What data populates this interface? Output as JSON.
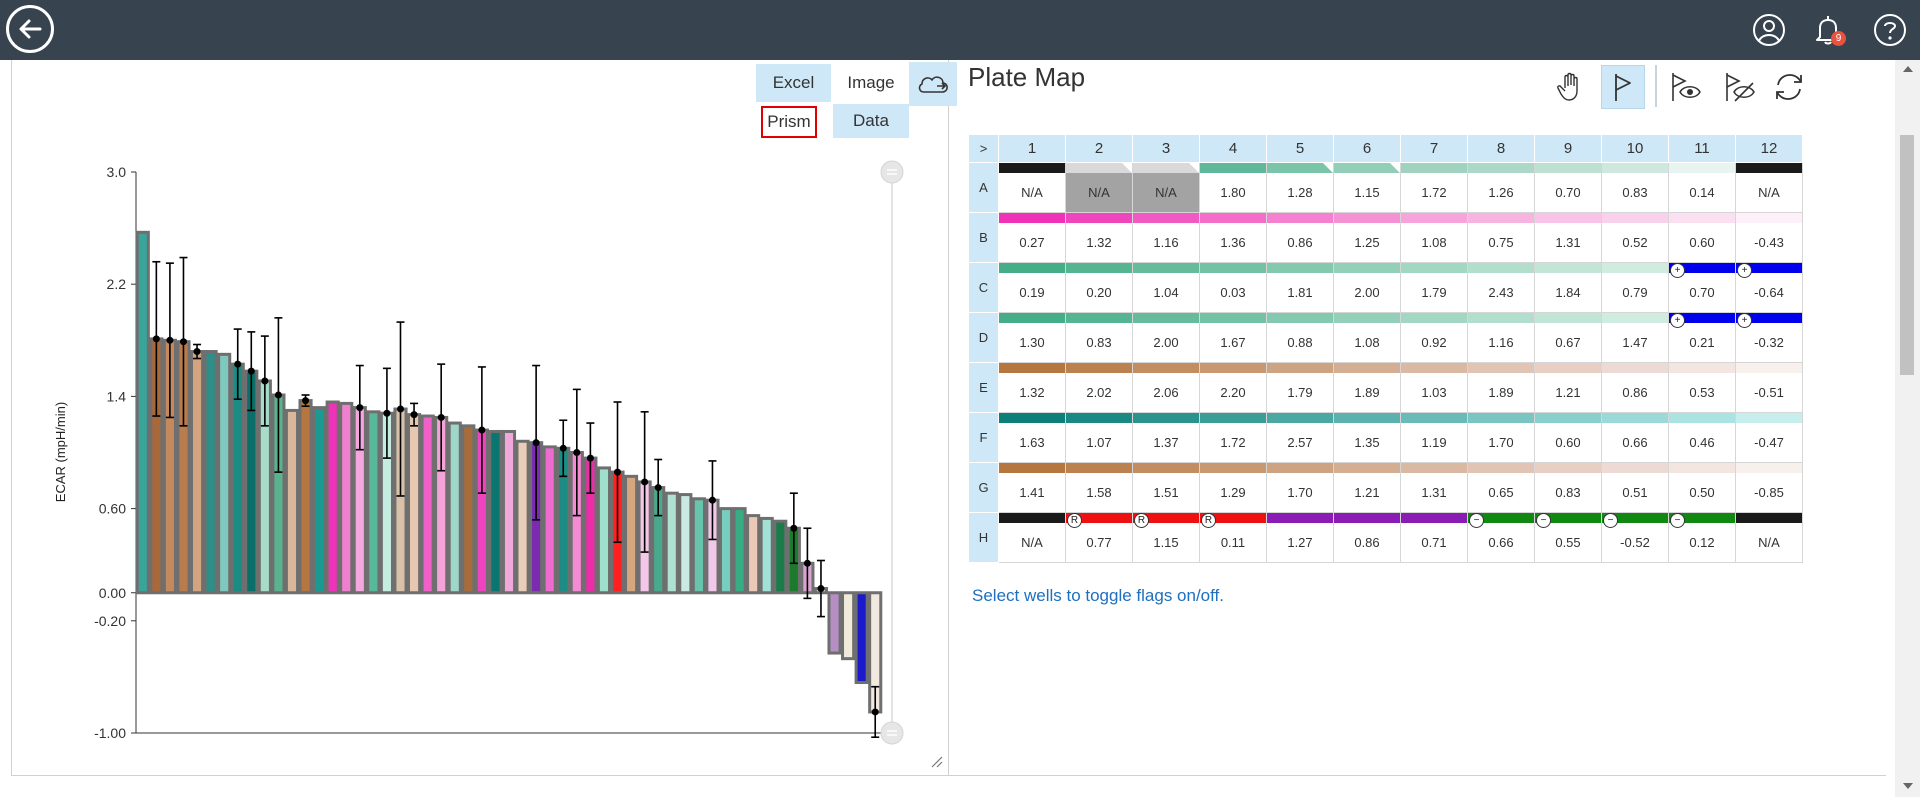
{
  "header": {
    "notification_count": "9",
    "icons": [
      "back-arrow-icon",
      "user-icon",
      "bell-icon",
      "help-icon"
    ]
  },
  "export": {
    "excel": "Excel",
    "image": "Image",
    "prism": "Prism",
    "data": "Data"
  },
  "colors": {
    "topbar": "#37434f",
    "header_cell": "#cfe8f7",
    "hint": "#1e6fc0",
    "prism_border": "#e00000"
  },
  "chart_data": {
    "type": "bar",
    "ylabel": "ECAR (mpH/min)",
    "ylim": [
      -1.0,
      3.0
    ],
    "y_ticks": [
      "3.0",
      "2.2",
      "1.4",
      "0.60",
      "0.00",
      "-0.20",
      "-1.00"
    ],
    "y_tick_values": [
      3.0,
      2.2,
      1.4,
      0.6,
      0.0,
      -0.2,
      -1.0
    ],
    "series": [
      {
        "values": [
          2.57,
          1.81,
          1.8,
          1.79,
          1.72,
          1.72,
          1.7,
          1.63,
          1.58,
          1.51,
          1.41,
          1.3,
          1.37,
          1.32,
          1.36,
          1.35,
          1.32,
          1.29,
          1.28,
          1.31,
          1.27,
          1.26,
          1.25,
          1.21,
          1.19,
          1.16,
          1.15,
          1.15,
          1.08,
          1.07,
          1.04,
          1.03,
          1.0,
          0.96,
          0.89,
          0.86,
          0.83,
          0.79,
          0.75,
          0.71,
          0.7,
          0.67,
          0.66,
          0.6,
          0.6,
          0.55,
          0.53,
          0.51,
          0.46,
          0.21,
          0.03,
          -0.43,
          -0.47,
          -0.64,
          -0.85
        ],
        "errors": [
          0,
          0.55,
          0.55,
          0.6,
          0.05,
          0,
          0,
          0.25,
          0.28,
          0.32,
          0.55,
          0,
          0.04,
          0,
          0,
          0,
          0.3,
          0,
          0.32,
          0.62,
          0.08,
          0,
          0.38,
          0,
          0,
          0.45,
          0,
          0,
          0,
          0.55,
          0,
          0.2,
          0.45,
          0.25,
          0,
          0.5,
          0,
          0.5,
          0.2,
          0,
          0,
          0,
          0.28,
          0,
          0,
          0,
          0,
          0,
          0.25,
          0.25,
          0.2,
          0,
          0,
          0,
          0.18
        ],
        "colors": [
          "#3aa39a",
          "#a9683a",
          "#c4895d",
          "#b87c4f",
          "#d4a480",
          "#2e8f89",
          "#7fc8bd",
          "#1a8c84",
          "#0a6e69",
          "#a8dcc9",
          "#59b38f",
          "#d8b79a",
          "#b5773f",
          "#1b9a91",
          "#ee33b8",
          "#f07fcf",
          "#f6a6df",
          "#5ab89a",
          "#c5ece0",
          "#d9c0a8",
          "#e6c8b1",
          "#f060c8",
          "#f3a3d8",
          "#9ed7c8",
          "#a86c3a",
          "#ee44c0",
          "#0b756f",
          "#f0a8dc",
          "#e9cdb8",
          "#7a2bb0",
          "#ee6ccf",
          "#1c8c84",
          "#f48ad3",
          "#ee2ba8",
          "#9fe0cc",
          "#ff2020",
          "#d6a77d",
          "#f4c6e8",
          "#48a98c",
          "#aee1d2",
          "#c9e9e2",
          "#66c5ad",
          "#f2c8ea",
          "#77cdbe",
          "#36ad82",
          "#eac9b7",
          "#a2e2d6",
          "#1a7d49",
          "#1b7a2b",
          "#d9a4d0",
          "#c8dcd9",
          "#b58ec4",
          "#f1eadb",
          "#1a1acc",
          "#f1e8e0"
        ]
      }
    ]
  },
  "plate_map": {
    "title": "Plate Map",
    "corner_label": ">",
    "columns": [
      "1",
      "2",
      "3",
      "4",
      "5",
      "6",
      "7",
      "8",
      "9",
      "10",
      "11",
      "12"
    ],
    "rows": [
      {
        "label": "A",
        "values": [
          "N/A",
          "N/A",
          "N/A",
          "1.80",
          "1.28",
          "1.15",
          "1.72",
          "1.26",
          "0.70",
          "0.83",
          "0.14",
          "N/A"
        ],
        "colors": [
          "#1a1a1a",
          "#d9d9d9",
          "#d9d9d9",
          "#5fb89a",
          "#7ac4a8",
          "#93cfb7",
          "#9fd3be",
          "#acd9c7",
          "#bde0d1",
          "#cfe8de",
          "#e8f4ef",
          "#1a1a1a"
        ]
      },
      {
        "label": "B",
        "values": [
          "0.27",
          "1.32",
          "1.16",
          "1.36",
          "0.86",
          "1.25",
          "1.08",
          "0.75",
          "1.31",
          "0.52",
          "0.60",
          "-0.43"
        ],
        "colors": [
          "#f032b8",
          "#f046bd",
          "#f25ac3",
          "#f36dc9",
          "#f480cf",
          "#f592d5",
          "#f6a4db",
          "#f7b4e1",
          "#f8c3e6",
          "#f9d1ec",
          "#fbe0f2",
          "#fdf0f8"
        ]
      },
      {
        "label": "C",
        "values": [
          "0.19",
          "0.20",
          "1.04",
          "0.03",
          "1.81",
          "2.00",
          "1.79",
          "2.43",
          "1.84",
          "0.79",
          "0.70",
          "-0.64"
        ],
        "colors": [
          "#45ad88",
          "#55b492",
          "#65bb9b",
          "#74c2a5",
          "#83c9af",
          "#93d0b9",
          "#a2d7c3",
          "#b1decd",
          "#c1e5d7",
          "#d0ece1",
          "#0000ee",
          "#0000ee"
        ]
      },
      {
        "label": "D",
        "values": [
          "1.30",
          "0.83",
          "2.00",
          "1.67",
          "0.88",
          "1.08",
          "0.92",
          "1.16",
          "0.67",
          "1.47",
          "0.21",
          "-0.32"
        ],
        "colors": [
          "#45ad88",
          "#55b492",
          "#65bb9b",
          "#74c2a5",
          "#83c9af",
          "#93d0b9",
          "#a2d7c3",
          "#b1decd",
          "#c1e5d7",
          "#d0ece1",
          "#0000ee",
          "#0000ee"
        ]
      },
      {
        "label": "E",
        "values": [
          "1.32",
          "2.02",
          "2.06",
          "2.20",
          "1.79",
          "1.89",
          "1.03",
          "1.89",
          "1.21",
          "0.86",
          "0.53",
          "-0.51"
        ],
        "colors": [
          "#b5773f",
          "#bb8250",
          "#c28d60",
          "#c89871",
          "#cea381",
          "#d4ae92",
          "#dab9a2",
          "#e1c4b3",
          "#e7cfc3",
          "#eddad4",
          "#f3e5e0",
          "#f8f0ec"
        ]
      },
      {
        "label": "F",
        "values": [
          "1.63",
          "1.07",
          "1.37",
          "1.72",
          "2.57",
          "1.35",
          "1.19",
          "1.70",
          "0.60",
          "0.66",
          "0.46",
          "-0.47"
        ],
        "colors": [
          "#0b7f78",
          "#1a8983",
          "#2a938d",
          "#3a9d98",
          "#4aa7a2",
          "#5ab1ad",
          "#6abbb7",
          "#7ac5c2",
          "#8acfcc",
          "#9ad9d7",
          "#aae3e1",
          "#c5eeec"
        ]
      },
      {
        "label": "G",
        "values": [
          "1.41",
          "1.58",
          "1.51",
          "1.29",
          "1.70",
          "1.21",
          "1.31",
          "0.65",
          "0.83",
          "0.51",
          "0.50",
          "-0.85"
        ],
        "colors": [
          "#b5773f",
          "#bb8250",
          "#c28d60",
          "#c89871",
          "#cea381",
          "#d4ae92",
          "#dab9a2",
          "#e1c4b3",
          "#e7cfc3",
          "#eddad4",
          "#f3e5e0",
          "#f8f0ec"
        ]
      },
      {
        "label": "H",
        "values": [
          "N/A",
          "0.77",
          "1.15",
          "0.11",
          "1.27",
          "0.86",
          "0.71",
          "0.66",
          "0.55",
          "-0.52",
          "0.12",
          "N/A"
        ],
        "colors": [
          "#1a1a1a",
          "#ee1111",
          "#ee1111",
          "#ee1111",
          "#8a1bb5",
          "#8a1bb5",
          "#8a1bb5",
          "#118811",
          "#118811",
          "#118811",
          "#118811",
          "#1a1a1a"
        ]
      }
    ],
    "flags": [
      {
        "row": 2,
        "col": 10,
        "symbol": "+"
      },
      {
        "row": 2,
        "col": 11,
        "symbol": "+"
      },
      {
        "row": 3,
        "col": 10,
        "symbol": "+"
      },
      {
        "row": 3,
        "col": 11,
        "symbol": "+"
      },
      {
        "row": 7,
        "col": 1,
        "symbol": "R"
      },
      {
        "row": 7,
        "col": 2,
        "symbol": "R"
      },
      {
        "row": 7,
        "col": 3,
        "symbol": "R"
      },
      {
        "row": 7,
        "col": 7,
        "symbol": "−"
      },
      {
        "row": 7,
        "col": 8,
        "symbol": "−"
      },
      {
        "row": 7,
        "col": 9,
        "symbol": "−"
      },
      {
        "row": 7,
        "col": 10,
        "symbol": "−"
      }
    ],
    "hint": "Select wells to toggle flags on/off."
  },
  "toolbar": {
    "icons": [
      "hand-select-icon",
      "flag-icon",
      "show-flags-icon",
      "hide-flags-icon",
      "refresh-icon"
    ]
  }
}
